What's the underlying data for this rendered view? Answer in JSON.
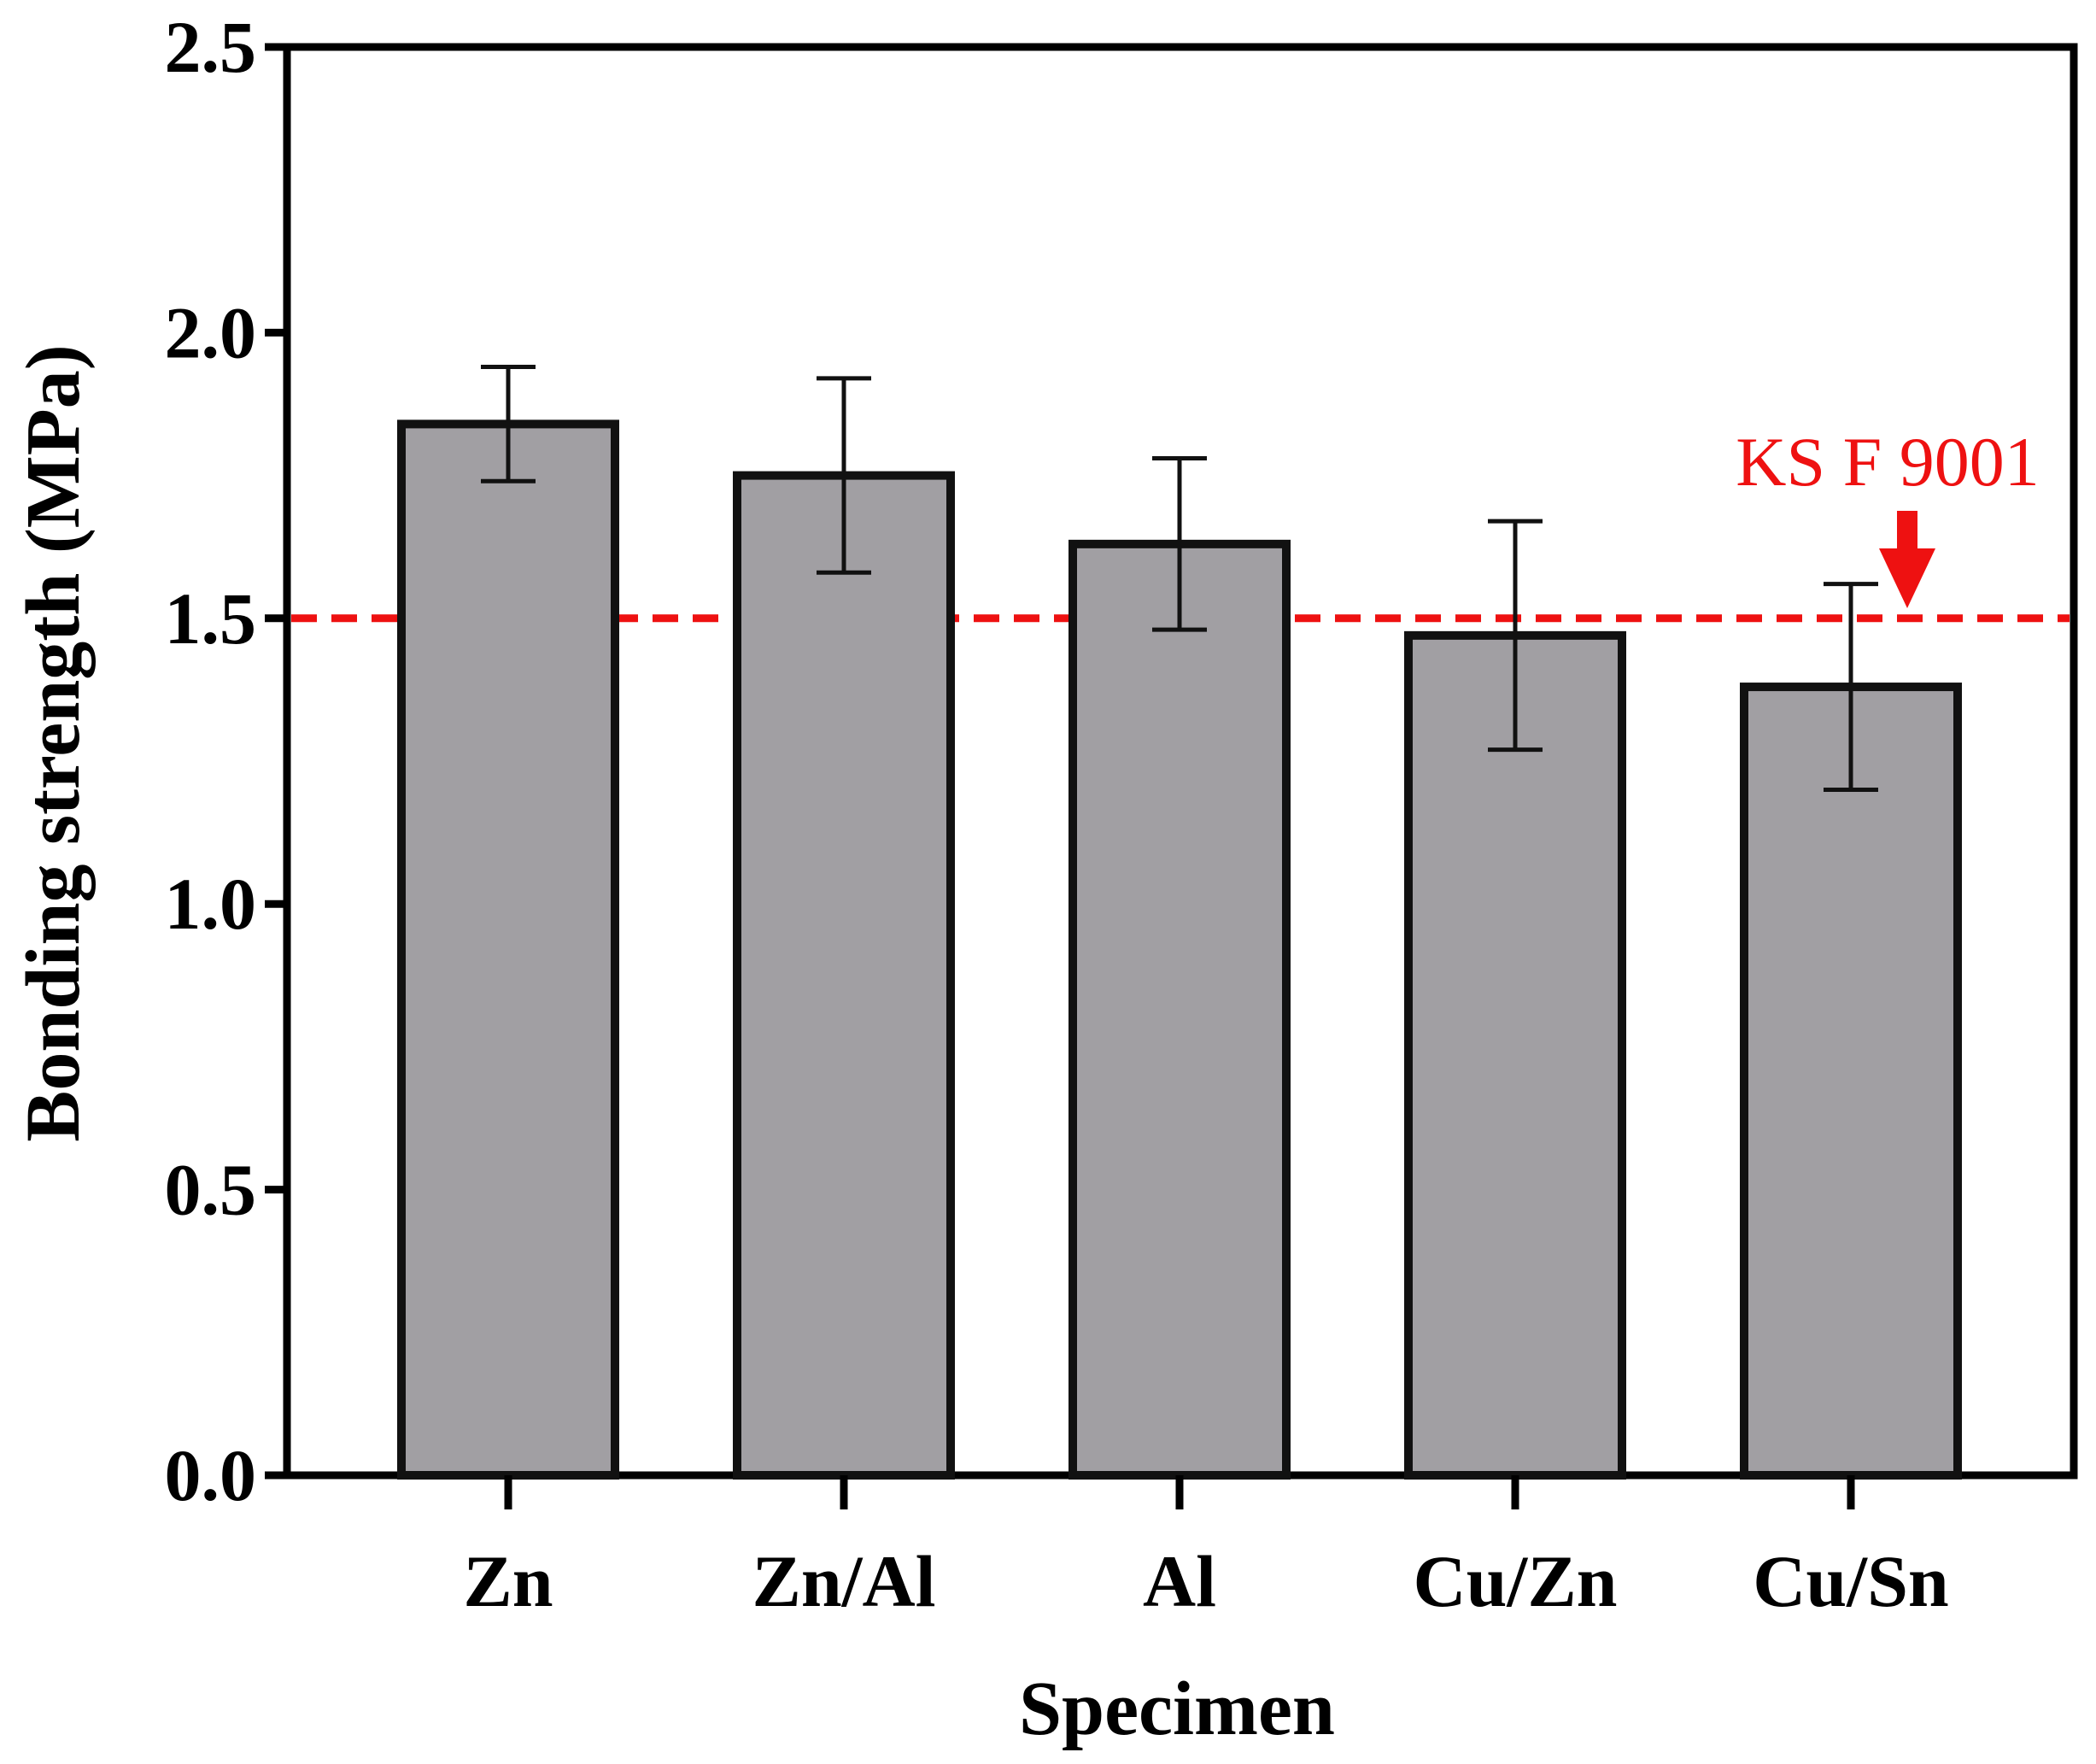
{
  "chart_data": {
    "type": "bar",
    "title": "",
    "xlabel": "Specimen",
    "ylabel": "Bonding strength (MPa)",
    "categories": [
      "Zn",
      "Zn/Al",
      "Al",
      "Cu/Zn",
      "Cu/Sn"
    ],
    "values": [
      1.84,
      1.75,
      1.63,
      1.47,
      1.38
    ],
    "errors": [
      [
        1.74,
        1.94
      ],
      [
        1.58,
        1.92
      ],
      [
        1.48,
        1.78
      ],
      [
        1.27,
        1.67
      ],
      [
        1.2,
        1.56
      ]
    ],
    "ylim": [
      0,
      2.5
    ],
    "yticks": [
      "0.0",
      "0.5",
      "1.0",
      "1.5",
      "2.0",
      "2.5"
    ],
    "grid": false,
    "reference_line": {
      "value": 1.5,
      "style": "dashed",
      "color": "#ee1111"
    },
    "annotation": {
      "text": "KS F 9001",
      "color": "#ee1111",
      "target_value": 1.5
    },
    "colors": {
      "bar_fill": "#a19fa3",
      "bar_stroke": "#111111",
      "axis": "#000000"
    }
  }
}
